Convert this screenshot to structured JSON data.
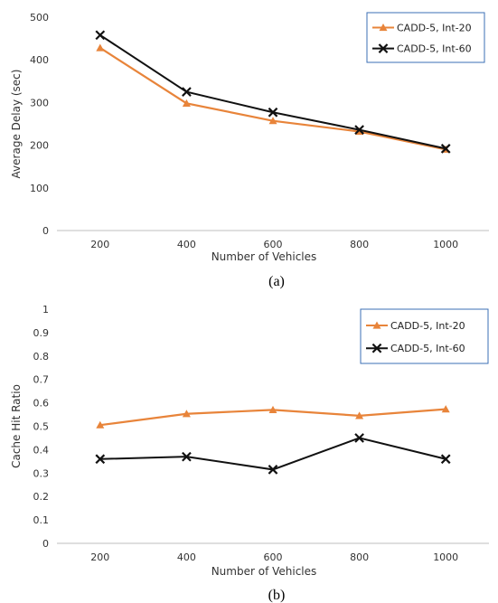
{
  "colors": {
    "series_orange": "#e8843a",
    "series_black": "#111111",
    "legend_border": "#3b6fb6",
    "grid": "#d9d9d9",
    "axis": "#bfbfbf"
  },
  "chart_data": [
    {
      "type": "line",
      "caption": "(a)",
      "xlabel": "Number of Vehicles",
      "ylabel": "Average Delay (sec)",
      "x": [
        200,
        400,
        600,
        800,
        1000
      ],
      "x_tick_labels": [
        "200",
        "400",
        "600",
        "800",
        "1000"
      ],
      "ylim": [
        0,
        500
      ],
      "y_ticks": [
        0,
        100,
        200,
        300,
        400,
        500
      ],
      "y_tick_labels": [
        "0",
        "100",
        "200",
        "300",
        "400",
        "500"
      ],
      "grid": false,
      "legend_position": "top-right",
      "series": [
        {
          "name": "CADD-5, Int-20",
          "marker": "triangle",
          "color": "#e8843a",
          "values": [
            428,
            298,
            257,
            232,
            190
          ]
        },
        {
          "name": "CADD-5, Int-60",
          "marker": "x",
          "color": "#111111",
          "values": [
            458,
            325,
            277,
            236,
            192
          ]
        }
      ]
    },
    {
      "type": "line",
      "caption": "(b)",
      "xlabel": "Number of Vehicles",
      "ylabel": "Cache Hit Ratio",
      "x": [
        200,
        400,
        600,
        800,
        1000
      ],
      "x_tick_labels": [
        "200",
        "400",
        "600",
        "800",
        "1000"
      ],
      "ylim": [
        0,
        1
      ],
      "y_ticks": [
        0,
        0.1,
        0.2,
        0.3,
        0.4,
        0.5,
        0.6,
        0.7,
        0.8,
        0.9,
        1
      ],
      "y_tick_labels": [
        "0",
        "0.1",
        "0.2",
        "0.3",
        "0.4",
        "0.5",
        "0.6",
        "0.7",
        "0.8",
        "0.9",
        "1"
      ],
      "grid": false,
      "legend_position": "top-right",
      "series": [
        {
          "name": "CADD-5, Int-20",
          "marker": "triangle",
          "color": "#e8843a",
          "values": [
            0.505,
            0.553,
            0.57,
            0.545,
            0.573
          ]
        },
        {
          "name": "CADD-5, Int-60",
          "marker": "x",
          "color": "#111111",
          "values": [
            0.36,
            0.37,
            0.315,
            0.45,
            0.36
          ]
        }
      ]
    }
  ]
}
